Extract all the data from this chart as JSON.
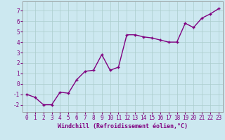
{
  "x": [
    0,
    1,
    2,
    3,
    4,
    5,
    6,
    7,
    8,
    9,
    10,
    11,
    12,
    13,
    14,
    15,
    16,
    17,
    18,
    19,
    20,
    21,
    22,
    23
  ],
  "y": [
    -1.0,
    -1.3,
    -2.0,
    -2.0,
    -0.8,
    -0.9,
    0.4,
    1.2,
    1.3,
    2.8,
    1.3,
    1.6,
    4.7,
    4.7,
    4.5,
    4.4,
    4.2,
    4.0,
    4.0,
    5.8,
    5.4,
    6.3,
    6.7,
    7.2
  ],
  "line_color": "#800080",
  "marker": "+",
  "marker_size": 3.5,
  "background_color": "#cce8f0",
  "grid_color": "#aacccc",
  "xlabel": "Windchill (Refroidissement éolien,°C)",
  "ylabel": "",
  "xlim": [
    -0.5,
    23.5
  ],
  "ylim": [
    -2.7,
    7.9
  ],
  "yticks": [
    -2,
    -1,
    0,
    1,
    2,
    3,
    4,
    5,
    6,
    7
  ],
  "xticks": [
    0,
    1,
    2,
    3,
    4,
    5,
    6,
    7,
    8,
    9,
    10,
    11,
    12,
    13,
    14,
    15,
    16,
    17,
    18,
    19,
    20,
    21,
    22,
    23
  ],
  "tick_label_color": "#800080",
  "tick_label_fontsize": 5.5,
  "xlabel_fontsize": 6.0,
  "line_width": 1.0
}
